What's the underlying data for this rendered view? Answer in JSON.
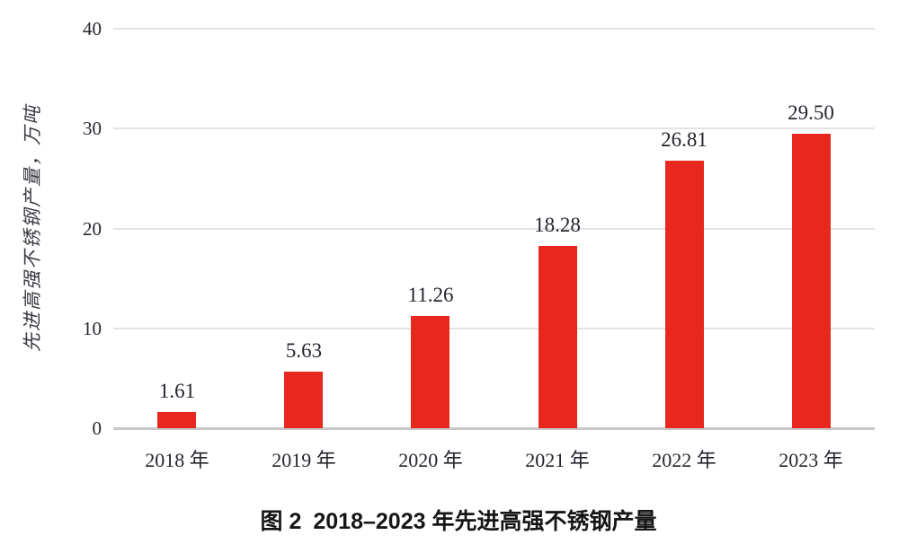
{
  "chart_data": {
    "type": "bar",
    "title": "图 2 2018–2023 年先进高强不锈钢产量",
    "categories": [
      "2018 年",
      "2019 年",
      "2020 年",
      "2021 年",
      "2022 年",
      "2023 年"
    ],
    "values": [
      1.61,
      5.63,
      11.26,
      18.28,
      26.81,
      29.5
    ],
    "value_labels": [
      "1.61",
      "5.63",
      "11.26",
      "18.28",
      "26.81",
      "29.50"
    ],
    "xlabel": "",
    "ylabel": "先进高强不锈钢产量，万吨",
    "ylim": [
      0,
      40
    ],
    "yticks": [
      0,
      10,
      20,
      30,
      40
    ],
    "ytick_labels": [
      "0",
      "10",
      "20",
      "30",
      "40"
    ],
    "grid": "horizontal",
    "legend": "none",
    "bar_color": "#e8281f"
  },
  "caption": {
    "figure_label": "图 2",
    "title": "2018–2023 年先进高强不锈钢产量"
  },
  "colors": {
    "bar": "#e8281f",
    "axis_text": "#26242e",
    "gridline": "#e3e3e3",
    "baseline": "#c7c7c7",
    "caption_text": "#161616",
    "background": "#ffffff"
  }
}
